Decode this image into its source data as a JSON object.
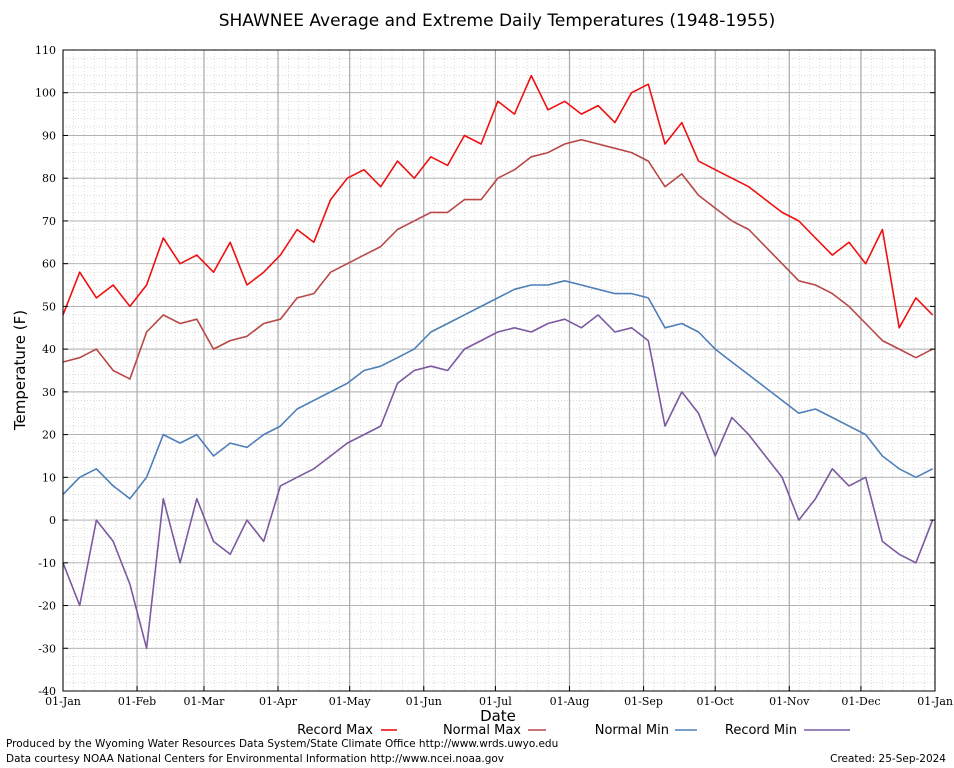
{
  "chart_data": {
    "type": "line",
    "title": "SHAWNEE Average and Extreme Daily Temperatures (1948-1955)",
    "xlabel": "Date",
    "ylabel": "Temperature (F)",
    "ylim": [
      -40,
      110
    ],
    "yticks": [
      -40,
      -30,
      -20,
      -10,
      0,
      10,
      20,
      30,
      40,
      50,
      60,
      70,
      80,
      90,
      100,
      110
    ],
    "xticks": [
      "01-Jan",
      "01-Feb",
      "01-Mar",
      "01-Apr",
      "01-May",
      "01-Jun",
      "01-Jul",
      "01-Aug",
      "01-Sep",
      "01-Oct",
      "01-Nov",
      "01-Dec",
      "01-Jan"
    ],
    "grid": true,
    "legend_position": "bottom",
    "series": [
      {
        "name": "Record Max",
        "color": "#ee1111",
        "x": [
          "01-Jan",
          "08-Jan",
          "15-Jan",
          "22-Jan",
          "29-Jan",
          "05-Feb",
          "12-Feb",
          "19-Feb",
          "26-Feb",
          "05-Mar",
          "12-Mar",
          "19-Mar",
          "26-Mar",
          "02-Apr",
          "09-Apr",
          "16-Apr",
          "23-Apr",
          "30-Apr",
          "07-May",
          "14-May",
          "21-May",
          "28-May",
          "04-Jun",
          "11-Jun",
          "18-Jun",
          "25-Jun",
          "02-Jul",
          "09-Jul",
          "16-Jul",
          "23-Jul",
          "30-Jul",
          "06-Aug",
          "13-Aug",
          "20-Aug",
          "27-Aug",
          "03-Sep",
          "10-Sep",
          "17-Sep",
          "24-Sep",
          "01-Oct",
          "08-Oct",
          "15-Oct",
          "22-Oct",
          "29-Oct",
          "05-Nov",
          "12-Nov",
          "19-Nov",
          "26-Nov",
          "03-Dec",
          "10-Dec",
          "17-Dec",
          "24-Dec",
          "31-Dec"
        ],
        "values": [
          48,
          58,
          52,
          55,
          50,
          55,
          66,
          60,
          62,
          58,
          65,
          55,
          58,
          62,
          68,
          65,
          75,
          80,
          82,
          78,
          84,
          80,
          85,
          83,
          90,
          88,
          98,
          95,
          104,
          96,
          98,
          95,
          97,
          93,
          100,
          102,
          88,
          93,
          84,
          82,
          80,
          78,
          75,
          72,
          70,
          66,
          62,
          65,
          60,
          68,
          45,
          52,
          48
        ]
      },
      {
        "name": "Normal Max",
        "color": "#b84848",
        "x": [
          "01-Jan",
          "08-Jan",
          "15-Jan",
          "22-Jan",
          "29-Jan",
          "05-Feb",
          "12-Feb",
          "19-Feb",
          "26-Feb",
          "05-Mar",
          "12-Mar",
          "19-Mar",
          "26-Mar",
          "02-Apr",
          "09-Apr",
          "16-Apr",
          "23-Apr",
          "30-Apr",
          "07-May",
          "14-May",
          "21-May",
          "28-May",
          "04-Jun",
          "11-Jun",
          "18-Jun",
          "25-Jun",
          "02-Jul",
          "09-Jul",
          "16-Jul",
          "23-Jul",
          "30-Jul",
          "06-Aug",
          "13-Aug",
          "20-Aug",
          "27-Aug",
          "03-Sep",
          "10-Sep",
          "17-Sep",
          "24-Sep",
          "01-Oct",
          "08-Oct",
          "15-Oct",
          "22-Oct",
          "29-Oct",
          "05-Nov",
          "12-Nov",
          "19-Nov",
          "26-Nov",
          "03-Dec",
          "10-Dec",
          "17-Dec",
          "24-Dec",
          "31-Dec"
        ],
        "values": [
          37,
          38,
          40,
          35,
          33,
          44,
          48,
          46,
          47,
          40,
          42,
          43,
          46,
          47,
          52,
          53,
          58,
          60,
          62,
          64,
          68,
          70,
          72,
          72,
          75,
          75,
          80,
          82,
          85,
          86,
          88,
          89,
          88,
          87,
          86,
          84,
          78,
          81,
          76,
          73,
          70,
          68,
          64,
          60,
          56,
          55,
          53,
          50,
          46,
          42,
          40,
          38,
          40
        ]
      },
      {
        "name": "Normal Min",
        "color": "#4f7fb8",
        "x": [
          "01-Jan",
          "08-Jan",
          "15-Jan",
          "22-Jan",
          "29-Jan",
          "05-Feb",
          "12-Feb",
          "19-Feb",
          "26-Feb",
          "05-Mar",
          "12-Mar",
          "19-Mar",
          "26-Mar",
          "02-Apr",
          "09-Apr",
          "16-Apr",
          "23-Apr",
          "30-Apr",
          "07-May",
          "14-May",
          "21-May",
          "28-May",
          "04-Jun",
          "11-Jun",
          "18-Jun",
          "25-Jun",
          "02-Jul",
          "09-Jul",
          "16-Jul",
          "23-Jul",
          "30-Jul",
          "06-Aug",
          "13-Aug",
          "20-Aug",
          "27-Aug",
          "03-Sep",
          "10-Sep",
          "17-Sep",
          "24-Sep",
          "01-Oct",
          "08-Oct",
          "15-Oct",
          "22-Oct",
          "29-Oct",
          "05-Nov",
          "12-Nov",
          "19-Nov",
          "26-Nov",
          "03-Dec",
          "10-Dec",
          "17-Dec",
          "24-Dec",
          "31-Dec"
        ],
        "values": [
          6,
          10,
          12,
          8,
          5,
          10,
          20,
          18,
          20,
          15,
          18,
          17,
          20,
          22,
          26,
          28,
          30,
          32,
          35,
          36,
          38,
          40,
          44,
          46,
          48,
          50,
          52,
          54,
          55,
          55,
          56,
          55,
          54,
          53,
          53,
          52,
          45,
          46,
          44,
          40,
          37,
          34,
          31,
          28,
          25,
          26,
          24,
          22,
          20,
          15,
          12,
          10,
          12
        ]
      },
      {
        "name": "Record Min",
        "color": "#7b5aa0",
        "x": [
          "01-Jan",
          "08-Jan",
          "15-Jan",
          "22-Jan",
          "29-Jan",
          "05-Feb",
          "12-Feb",
          "19-Feb",
          "26-Feb",
          "05-Mar",
          "12-Mar",
          "19-Mar",
          "26-Mar",
          "02-Apr",
          "09-Apr",
          "16-Apr",
          "23-Apr",
          "30-Apr",
          "07-May",
          "14-May",
          "21-May",
          "28-May",
          "04-Jun",
          "11-Jun",
          "18-Jun",
          "25-Jun",
          "02-Jul",
          "09-Jul",
          "16-Jul",
          "23-Jul",
          "30-Jul",
          "06-Aug",
          "13-Aug",
          "20-Aug",
          "27-Aug",
          "03-Sep",
          "10-Sep",
          "17-Sep",
          "24-Sep",
          "01-Oct",
          "08-Oct",
          "15-Oct",
          "22-Oct",
          "29-Oct",
          "05-Nov",
          "12-Nov",
          "19-Nov",
          "26-Nov",
          "03-Dec",
          "10-Dec",
          "17-Dec",
          "24-Dec",
          "31-Dec"
        ],
        "values": [
          -10,
          -20,
          0,
          -5,
          -15,
          -30,
          5,
          -10,
          5,
          -5,
          -8,
          0,
          -5,
          8,
          10,
          12,
          15,
          18,
          20,
          22,
          32,
          35,
          36,
          35,
          40,
          42,
          44,
          45,
          44,
          46,
          47,
          45,
          48,
          44,
          45,
          42,
          22,
          30,
          25,
          15,
          24,
          20,
          15,
          10,
          0,
          5,
          12,
          8,
          10,
          -5,
          -8,
          -10,
          0
        ]
      }
    ]
  },
  "footer": {
    "line1": "Produced by the Wyoming Water Resources Data System/State Climate Office http://www.wrds.uwyo.edu",
    "line2": "Data courtesy NOAA National Centers for Environmental Information http://www.ncei.noaa.gov",
    "created": "Created:  25-Sep-2024"
  }
}
